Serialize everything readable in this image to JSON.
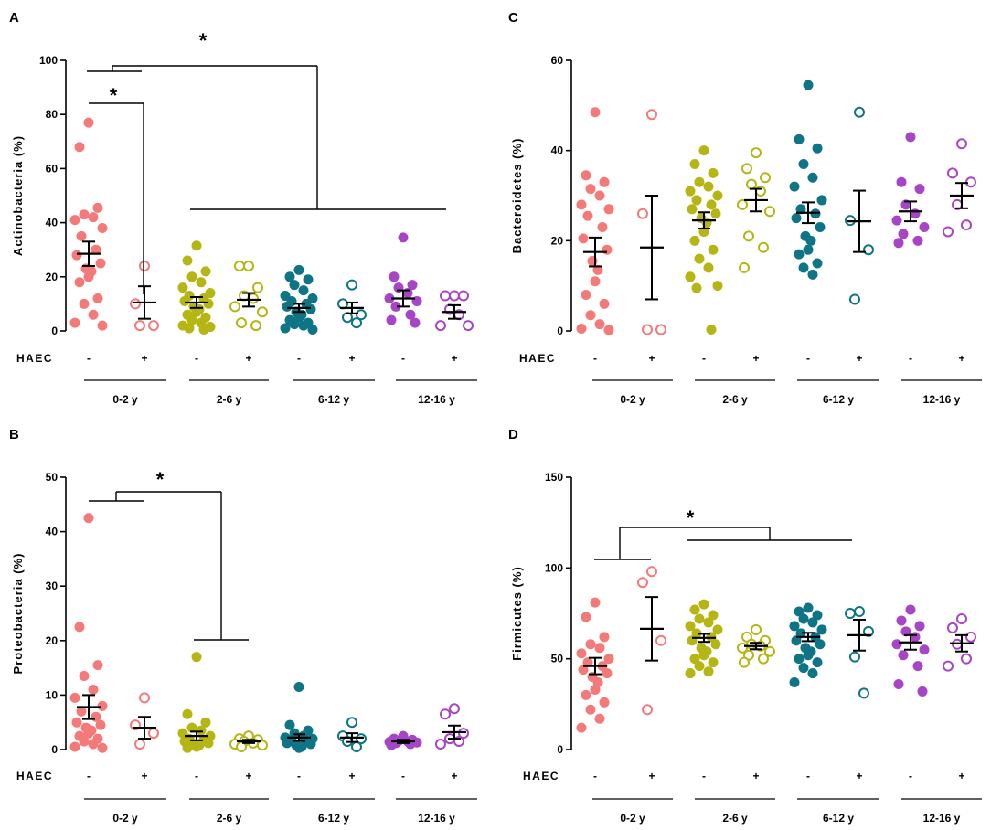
{
  "figure": {
    "haec_label": "HAEC",
    "haec_signs": [
      "-",
      "+",
      "-",
      "+",
      "-",
      "+",
      "-",
      "+"
    ],
    "group_labels": [
      "0-2 y",
      "2-6 y",
      "6-12 y",
      "12-16 y"
    ],
    "significance_symbol": "*"
  },
  "chart_data": [
    {
      "panel": "A",
      "type": "scatter",
      "ylabel": "Actinobacteria (%)",
      "ylim": [
        0,
        100
      ],
      "yticks": [
        0,
        20,
        40,
        60,
        80,
        100
      ],
      "series": [
        {
          "group": "0-2 y",
          "haec": "-",
          "color": "#f47a7a",
          "filled": true,
          "mean": 28.5,
          "sem": 4.5,
          "values": [
            77,
            68,
            45.5,
            43,
            42,
            41,
            38,
            35,
            30,
            28,
            25,
            23,
            22,
            20,
            18,
            12,
            10,
            6,
            3,
            2
          ]
        },
        {
          "group": "0-2 y",
          "haec": "+",
          "color": "#f47a7a",
          "filled": false,
          "mean": 10.5,
          "sem": 6,
          "values": [
            24,
            10,
            2,
            2
          ]
        },
        {
          "group": "2-6 y",
          "haec": "-",
          "color": "#b5b514",
          "filled": true,
          "mean": 10.5,
          "sem": 2,
          "values": [
            31.5,
            26,
            22,
            20,
            18,
            16,
            14,
            13,
            12,
            11,
            10,
            9,
            8,
            7,
            6,
            5,
            4,
            3,
            2,
            1.5,
            1,
            0.5
          ]
        },
        {
          "group": "2-6 y",
          "haec": "+",
          "color": "#b5b514",
          "filled": false,
          "mean": 11.5,
          "sem": 2.5,
          "values": [
            24,
            24,
            16,
            13,
            12,
            9,
            7,
            3,
            2
          ]
        },
        {
          "group": "6-12 y",
          "haec": "-",
          "color": "#0e7586",
          "filled": true,
          "mean": 8.5,
          "sem": 1.5,
          "values": [
            22.5,
            20,
            19,
            17,
            15,
            13,
            12,
            11,
            10,
            9,
            8,
            7,
            6,
            5,
            4,
            3,
            2.5,
            2,
            1,
            0.5
          ]
        },
        {
          "group": "6-12 y",
          "haec": "+",
          "color": "#0e7586",
          "filled": false,
          "mean": 8.5,
          "sem": 2,
          "values": [
            17,
            10,
            6,
            5,
            3
          ]
        },
        {
          "group": "12-16 y",
          "haec": "-",
          "color": "#a845c7",
          "filled": true,
          "mean": 12,
          "sem": 3,
          "values": [
            34.5,
            20,
            17,
            16,
            14,
            12,
            11,
            9,
            6,
            4,
            3
          ]
        },
        {
          "group": "12-16 y",
          "haec": "+",
          "color": "#a845c7",
          "filled": false,
          "mean": 7,
          "sem": 2.5,
          "values": [
            13,
            13,
            13,
            8,
            6,
            2,
            2
          ]
        }
      ]
    },
    {
      "panel": "B",
      "type": "scatter",
      "ylabel": "Proteobacteria (%)",
      "ylim": [
        0,
        50
      ],
      "yticks": [
        0,
        10,
        20,
        30,
        40,
        50
      ],
      "series": [
        {
          "group": "0-2 y",
          "haec": "-",
          "color": "#f47a7a",
          "filled": true,
          "mean": 7.8,
          "sem": 2.2,
          "values": [
            42.5,
            22.5,
            15.5,
            13.5,
            11,
            9.5,
            8,
            7,
            6,
            5,
            4.5,
            4,
            3.5,
            3,
            2.5,
            2,
            1.5,
            1,
            0.5,
            0.3
          ]
        },
        {
          "group": "0-2 y",
          "haec": "+",
          "color": "#f47a7a",
          "filled": false,
          "mean": 4,
          "sem": 2,
          "values": [
            9.5,
            4.5,
            3,
            1
          ]
        },
        {
          "group": "2-6 y",
          "haec": "-",
          "color": "#b5b514",
          "filled": true,
          "mean": 2.5,
          "sem": 0.8,
          "values": [
            17,
            6.5,
            5,
            4,
            3.5,
            3,
            2.5,
            2,
            1.8,
            1.5,
            1.2,
            1,
            0.8,
            0.5,
            0.3
          ]
        },
        {
          "group": "2-6 y",
          "haec": "+",
          "color": "#b5b514",
          "filled": false,
          "mean": 1.5,
          "sem": 0.3,
          "values": [
            2.5,
            2,
            1.8,
            1.5,
            1.2,
            1,
            0.8,
            0.5
          ]
        },
        {
          "group": "6-12 y",
          "haec": "-",
          "color": "#0e7586",
          "filled": true,
          "mean": 2.2,
          "sem": 0.6,
          "values": [
            11.5,
            4.5,
            3.5,
            3,
            2.5,
            2.2,
            2,
            1.8,
            1.5,
            1.2,
            1,
            0.8,
            0.5,
            0.3
          ]
        },
        {
          "group": "6-12 y",
          "haec": "+",
          "color": "#0e7586",
          "filled": false,
          "mean": 2.2,
          "sem": 0.8,
          "values": [
            5,
            2.5,
            2,
            1.5,
            0.5
          ]
        },
        {
          "group": "12-16 y",
          "haec": "-",
          "color": "#a845c7",
          "filled": true,
          "mean": 1.5,
          "sem": 0.3,
          "values": [
            2.5,
            2,
            1.8,
            1.6,
            1.5,
            1.4,
            1.3,
            1.2,
            1,
            0.8
          ]
        },
        {
          "group": "12-16 y",
          "haec": "+",
          "color": "#a845c7",
          "filled": false,
          "mean": 3.2,
          "sem": 1.2,
          "values": [
            7.5,
            6.5,
            3,
            2,
            1.5,
            1
          ]
        }
      ]
    },
    {
      "panel": "C",
      "type": "scatter",
      "ylabel": "Bacteroidetes (%)",
      "ylim": [
        0,
        60
      ],
      "yticks": [
        0,
        20,
        40,
        60
      ],
      "series": [
        {
          "group": "0-2 y",
          "haec": "-",
          "color": "#f47a7a",
          "filled": true,
          "mean": 17.5,
          "sem": 3.2,
          "values": [
            48.5,
            34.5,
            33,
            31.5,
            30,
            28,
            27,
            25.5,
            23,
            20.5,
            18,
            15.5,
            13.5,
            11,
            8,
            6,
            3.5,
            1.5,
            0.5,
            0.2
          ]
        },
        {
          "group": "0-2 y",
          "haec": "+",
          "color": "#f47a7a",
          "filled": false,
          "mean": 18.5,
          "sem": 11.5,
          "values": [
            48,
            26,
            0.3,
            0.3
          ]
        },
        {
          "group": "2-6 y",
          "haec": "-",
          "color": "#b5b514",
          "filled": true,
          "mean": 24.5,
          "sem": 1.8,
          "values": [
            40,
            37,
            35,
            33,
            32,
            31,
            30,
            29,
            28,
            27,
            26,
            25,
            24,
            22,
            20,
            18,
            16,
            14,
            12,
            10,
            9.5,
            0.3
          ]
        },
        {
          "group": "2-6 y",
          "haec": "+",
          "color": "#b5b514",
          "filled": false,
          "mean": 29,
          "sem": 2.5,
          "values": [
            39.5,
            36,
            34,
            32.5,
            31,
            28,
            26.5,
            21,
            18.5,
            14
          ]
        },
        {
          "group": "6-12 y",
          "haec": "-",
          "color": "#0e7586",
          "filled": true,
          "mean": 26.2,
          "sem": 2.3,
          "values": [
            54.5,
            42.5,
            40.5,
            37,
            34,
            32,
            29,
            27,
            26,
            25,
            23,
            21,
            20,
            18,
            17,
            15,
            14,
            12.5
          ]
        },
        {
          "group": "6-12 y",
          "haec": "+",
          "color": "#0e7586",
          "filled": false,
          "mean": 24.3,
          "sem": 6.8,
          "values": [
            48.5,
            24.5,
            18,
            7
          ]
        },
        {
          "group": "12-16 y",
          "haec": "-",
          "color": "#a845c7",
          "filled": true,
          "mean": 26.5,
          "sem": 2.2,
          "values": [
            43,
            33,
            31.5,
            28,
            26,
            24.5,
            23,
            21.5,
            20,
            19.5
          ]
        },
        {
          "group": "12-16 y",
          "haec": "+",
          "color": "#a845c7",
          "filled": false,
          "mean": 30,
          "sem": 2.8,
          "values": [
            41.5,
            35,
            33,
            28,
            23.5,
            22
          ]
        }
      ]
    },
    {
      "panel": "D",
      "type": "scatter",
      "ylabel": "Firmicutes (%)",
      "ylim": [
        0,
        150
      ],
      "yticks": [
        0,
        50,
        100,
        150
      ],
      "series": [
        {
          "group": "0-2 y",
          "haec": "-",
          "color": "#f47a7a",
          "filled": true,
          "mean": 46,
          "sem": 4.5,
          "values": [
            81,
            73,
            62,
            58,
            56,
            53,
            50,
            48,
            46,
            44,
            42,
            40,
            37,
            33,
            30,
            26,
            22,
            17,
            12
          ]
        },
        {
          "group": "0-2 y",
          "haec": "+",
          "color": "#f47a7a",
          "filled": false,
          "mean": 66.5,
          "sem": 17.5,
          "values": [
            98,
            92,
            60,
            22
          ]
        },
        {
          "group": "2-6 y",
          "haec": "-",
          "color": "#b5b514",
          "filled": true,
          "mean": 61.5,
          "sem": 2.2,
          "values": [
            80,
            77,
            74,
            72,
            70,
            68,
            66,
            64,
            62,
            60,
            58,
            56,
            54,
            52,
            50,
            48,
            46,
            43,
            42
          ]
        },
        {
          "group": "2-6 y",
          "haec": "+",
          "color": "#b5b514",
          "filled": false,
          "mean": 57,
          "sem": 1.8,
          "values": [
            66,
            62,
            60,
            58,
            57,
            56,
            54,
            52,
            50,
            48
          ]
        },
        {
          "group": "6-12 y",
          "haec": "-",
          "color": "#0e7586",
          "filled": true,
          "mean": 62,
          "sem": 2.3,
          "values": [
            78,
            76,
            74,
            72,
            70,
            68,
            66,
            64,
            62,
            60,
            58,
            56,
            54,
            52,
            50,
            48,
            45,
            42,
            37
          ]
        },
        {
          "group": "6-12 y",
          "haec": "+",
          "color": "#0e7586",
          "filled": false,
          "mean": 63,
          "sem": 8.5,
          "values": [
            76,
            75,
            65,
            51,
            31
          ]
        },
        {
          "group": "12-16 y",
          "haec": "-",
          "color": "#a845c7",
          "filled": true,
          "mean": 59,
          "sem": 4,
          "values": [
            77,
            71,
            68,
            65,
            62,
            58,
            55,
            52,
            46,
            36,
            32
          ]
        },
        {
          "group": "12-16 y",
          "haec": "+",
          "color": "#a845c7",
          "filled": false,
          "mean": 58.5,
          "sem": 4.5,
          "values": [
            72,
            67,
            62,
            58,
            50,
            46
          ]
        }
      ]
    }
  ]
}
